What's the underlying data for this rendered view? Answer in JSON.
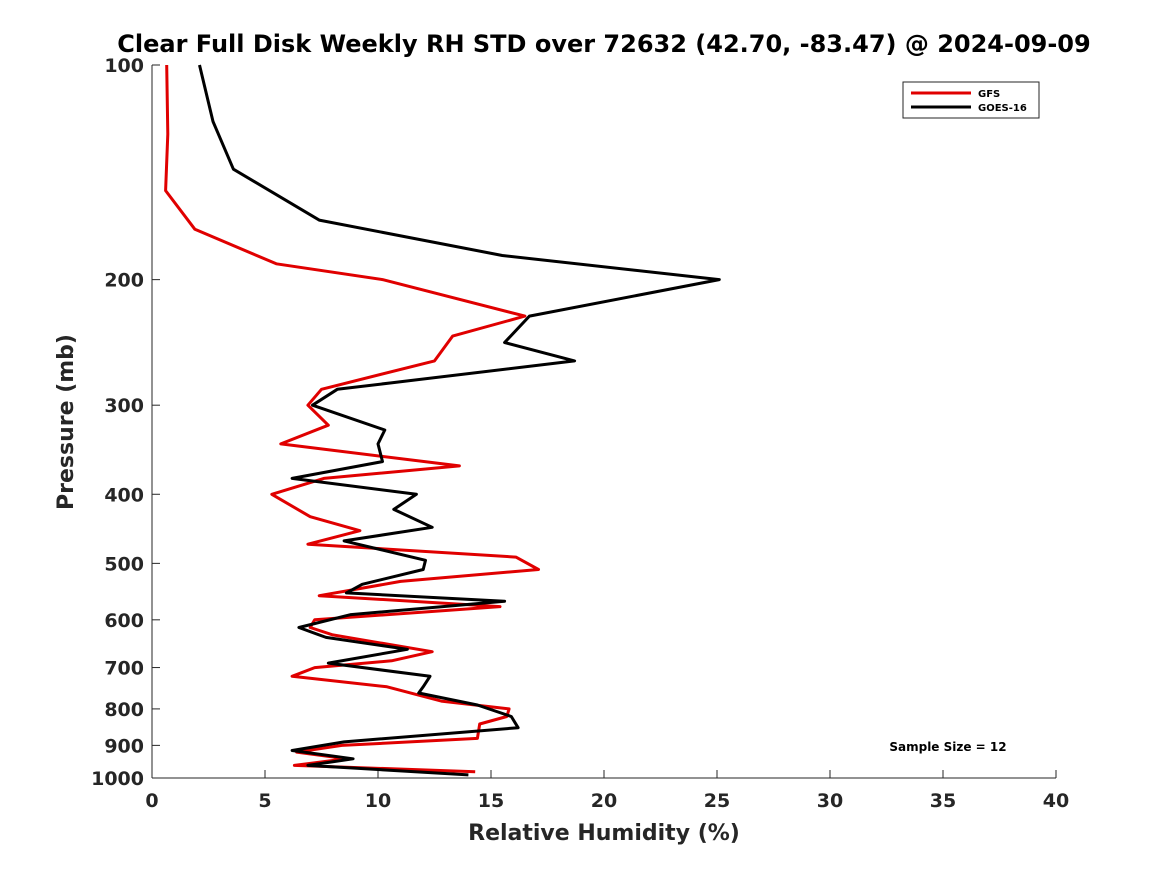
{
  "chart_data": {
    "type": "line",
    "title": "Clear Full Disk Weekly RH STD over 72632 (42.70, -83.47) @ 2024-09-09",
    "xlabel": "Relative Humidity (%)",
    "ylabel": "Pressure (mb)",
    "xlim": [
      0,
      40
    ],
    "ylim": [
      100,
      1000
    ],
    "y_scale": "log",
    "y_reversed": true,
    "grid": false,
    "legend_position": "top-right",
    "x_ticks": [
      "0",
      "5",
      "10",
      "15",
      "20",
      "25",
      "30",
      "35",
      "40"
    ],
    "y_ticks": [
      "100",
      "200",
      "300",
      "400",
      "500",
      "600",
      "700",
      "800",
      "900",
      "1000"
    ],
    "annotation": "Sample Size = 12",
    "series": [
      {
        "name": "GFS",
        "color": "#e00000",
        "points": [
          [
            0.65,
            100
          ],
          [
            0.7,
            125
          ],
          [
            0.6,
            150
          ],
          [
            1.9,
            170
          ],
          [
            5.5,
            190
          ],
          [
            10.2,
            200
          ],
          [
            16.5,
            225
          ],
          [
            13.3,
            240
          ],
          [
            12.5,
            260
          ],
          [
            7.5,
            285
          ],
          [
            6.9,
            300
          ],
          [
            7.8,
            320
          ],
          [
            5.7,
            340
          ],
          [
            13.6,
            365
          ],
          [
            7.6,
            380
          ],
          [
            5.3,
            400
          ],
          [
            7.0,
            430
          ],
          [
            9.2,
            450
          ],
          [
            6.9,
            470
          ],
          [
            16.1,
            490
          ],
          [
            17.1,
            510
          ],
          [
            11.0,
            530
          ],
          [
            7.4,
            555
          ],
          [
            15.4,
            575
          ],
          [
            7.2,
            600
          ],
          [
            7.0,
            615
          ],
          [
            8.0,
            630
          ],
          [
            12.4,
            665
          ],
          [
            10.6,
            685
          ],
          [
            7.2,
            700
          ],
          [
            6.2,
            720
          ],
          [
            10.4,
            745
          ],
          [
            12.8,
            780
          ],
          [
            15.8,
            800
          ],
          [
            15.7,
            820
          ],
          [
            14.5,
            840
          ],
          [
            14.4,
            880
          ],
          [
            8.4,
            900
          ],
          [
            6.4,
            920
          ],
          [
            8.6,
            940
          ],
          [
            6.3,
            960
          ],
          [
            14.3,
            980
          ]
        ]
      },
      {
        "name": "GOES-16",
        "color": "#000000",
        "points": [
          [
            2.1,
            100
          ],
          [
            2.7,
            120
          ],
          [
            3.6,
            140
          ],
          [
            7.4,
            165
          ],
          [
            15.5,
            185
          ],
          [
            25.1,
            200
          ],
          [
            16.7,
            225
          ],
          [
            15.6,
            245
          ],
          [
            18.7,
            260
          ],
          [
            8.2,
            285
          ],
          [
            7.1,
            300
          ],
          [
            10.3,
            325
          ],
          [
            10.0,
            340
          ],
          [
            10.2,
            360
          ],
          [
            6.2,
            380
          ],
          [
            11.7,
            400
          ],
          [
            10.7,
            420
          ],
          [
            12.4,
            445
          ],
          [
            8.5,
            465
          ],
          [
            12.1,
            495
          ],
          [
            12.0,
            510
          ],
          [
            9.3,
            535
          ],
          [
            8.6,
            550
          ],
          [
            15.6,
            565
          ],
          [
            8.8,
            590
          ],
          [
            6.5,
            615
          ],
          [
            7.7,
            635
          ],
          [
            11.3,
            660
          ],
          [
            7.8,
            690
          ],
          [
            12.3,
            720
          ],
          [
            12.0,
            745
          ],
          [
            11.8,
            760
          ],
          [
            14.4,
            790
          ],
          [
            15.9,
            820
          ],
          [
            16.2,
            850
          ],
          [
            8.5,
            890
          ],
          [
            6.2,
            915
          ],
          [
            8.9,
            940
          ],
          [
            6.9,
            960
          ],
          [
            14.0,
            990
          ]
        ]
      }
    ]
  }
}
